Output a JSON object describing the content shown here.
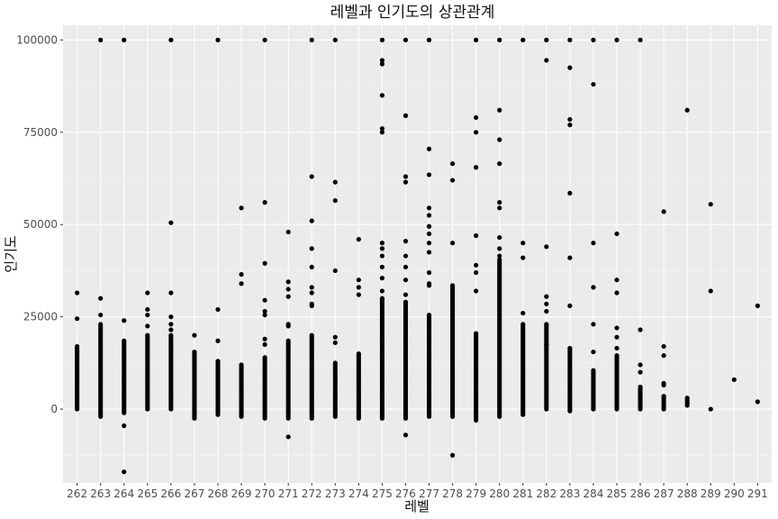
{
  "chart_data": {
    "type": "scatter",
    "title": "레벨과 인기도의 상관관계",
    "xlabel": "레벨",
    "ylabel": "인기도",
    "x_ticks": [
      262,
      263,
      264,
      265,
      266,
      267,
      268,
      269,
      270,
      271,
      272,
      273,
      274,
      275,
      276,
      277,
      278,
      279,
      280,
      281,
      282,
      283,
      284,
      285,
      286,
      287,
      288,
      289,
      290,
      291
    ],
    "y_ticks": [
      0,
      25000,
      50000,
      75000,
      100000
    ],
    "y_tick_labels": [
      "0",
      "25000",
      "50000",
      "75000",
      "100000"
    ],
    "xlim": [
      261.4,
      291.6
    ],
    "ylim": [
      -20000,
      104000
    ],
    "grid": true,
    "points_description": "Dense vertical columns of points at each integer level; approximate values read from the plot.",
    "columns": [
      {
        "x": 262,
        "dense": [
          0,
          17000
        ],
        "y": [
          24500,
          31500
        ]
      },
      {
        "x": 263,
        "dense": [
          -2000,
          23000
        ],
        "y": [
          25500,
          30000,
          100000
        ]
      },
      {
        "x": 264,
        "dense": [
          -1000,
          18500
        ],
        "y": [
          -4500,
          -17000,
          24000,
          100000
        ]
      },
      {
        "x": 265,
        "dense": [
          0,
          20000
        ],
        "y": [
          22500,
          25500,
          27000,
          31500
        ]
      },
      {
        "x": 266,
        "dense": [
          0,
          20000
        ],
        "y": [
          21500,
          23000,
          25000,
          31500,
          50500,
          100000
        ]
      },
      {
        "x": 267,
        "dense": [
          -2500,
          15500
        ],
        "y": [
          20000
        ]
      },
      {
        "x": 268,
        "dense": [
          -1500,
          13000
        ],
        "y": [
          18500,
          27000,
          100000
        ]
      },
      {
        "x": 269,
        "dense": [
          -2000,
          12000
        ],
        "y": [
          34000,
          36500,
          54500
        ]
      },
      {
        "x": 270,
        "dense": [
          -2500,
          14000
        ],
        "y": [
          17500,
          19000,
          25500,
          26500,
          29500,
          39500,
          56000,
          100000
        ]
      },
      {
        "x": 271,
        "dense": [
          -2500,
          18500
        ],
        "y": [
          -7500,
          22500,
          23000,
          30500,
          32500,
          34500,
          48000
        ]
      },
      {
        "x": 272,
        "dense": [
          -2500,
          20000
        ],
        "y": [
          28000,
          28500,
          31500,
          33000,
          38500,
          43500,
          51000,
          63000,
          100000
        ]
      },
      {
        "x": 273,
        "dense": [
          -2000,
          12500
        ],
        "y": [
          18000,
          19500,
          37500,
          56500,
          61500,
          100000
        ]
      },
      {
        "x": 274,
        "dense": [
          -2500,
          15000
        ],
        "y": [
          31000,
          33000,
          35000,
          46000
        ]
      },
      {
        "x": 275,
        "dense": [
          -2500,
          30000
        ],
        "y": [
          32000,
          35500,
          38500,
          41500,
          43500,
          45000,
          75000,
          76000,
          85000,
          93500,
          94500,
          100000
        ]
      },
      {
        "x": 276,
        "dense": [
          -2500,
          29000
        ],
        "y": [
          -7000,
          31000,
          35000,
          38500,
          41500,
          45500,
          61500,
          63000,
          79500,
          100000
        ]
      },
      {
        "x": 277,
        "dense": [
          -2000,
          25500
        ],
        "y": [
          33500,
          34000,
          37000,
          42500,
          45000,
          47500,
          49500,
          52500,
          54500,
          63500,
          70500,
          100000
        ]
      },
      {
        "x": 278,
        "dense": [
          -2000,
          33500
        ],
        "y": [
          -12500,
          45000,
          62000,
          66500
        ]
      },
      {
        "x": 279,
        "dense": [
          -3000,
          20500
        ],
        "y": [
          32000,
          37000,
          39000,
          47000,
          65500,
          75000,
          79000,
          100000
        ]
      },
      {
        "x": 280,
        "dense": [
          -2000,
          40000
        ],
        "y": [
          40500,
          41500,
          43500,
          46500,
          54500,
          56000,
          66500,
          73000,
          81000,
          100000
        ]
      },
      {
        "x": 281,
        "dense": [
          -1500,
          23000
        ],
        "y": [
          26000,
          41000,
          45000,
          100000
        ]
      },
      {
        "x": 282,
        "dense": [
          0,
          23000
        ],
        "y": [
          17500,
          26500,
          28500,
          30500,
          44000,
          94500,
          100000
        ]
      },
      {
        "x": 283,
        "dense": [
          -500,
          16500
        ],
        "y": [
          28000,
          41000,
          58500,
          77000,
          78500,
          92500,
          100000
        ]
      },
      {
        "x": 284,
        "dense": [
          0,
          10500
        ],
        "y": [
          15500,
          23000,
          33000,
          45000,
          88000,
          100000
        ]
      },
      {
        "x": 285,
        "dense": [
          0,
          14500
        ],
        "y": [
          16500,
          19500,
          22000,
          31500,
          35000,
          47500,
          100000
        ]
      },
      {
        "x": 286,
        "dense": [
          0,
          6000
        ],
        "y": [
          10000,
          12000,
          21500,
          100000
        ]
      },
      {
        "x": 287,
        "dense": [
          0,
          3500
        ],
        "y": [
          6500,
          7000,
          14500,
          17000,
          53500
        ]
      },
      {
        "x": 288,
        "dense": [
          1000,
          3000
        ],
        "y": [
          81000
        ]
      },
      {
        "x": 289,
        "dense": [],
        "y": [
          0,
          32000,
          55500
        ]
      },
      {
        "x": 290,
        "dense": [],
        "y": [
          8000
        ]
      },
      {
        "x": 291,
        "dense": [],
        "y": [
          2000,
          28000
        ]
      }
    ]
  }
}
